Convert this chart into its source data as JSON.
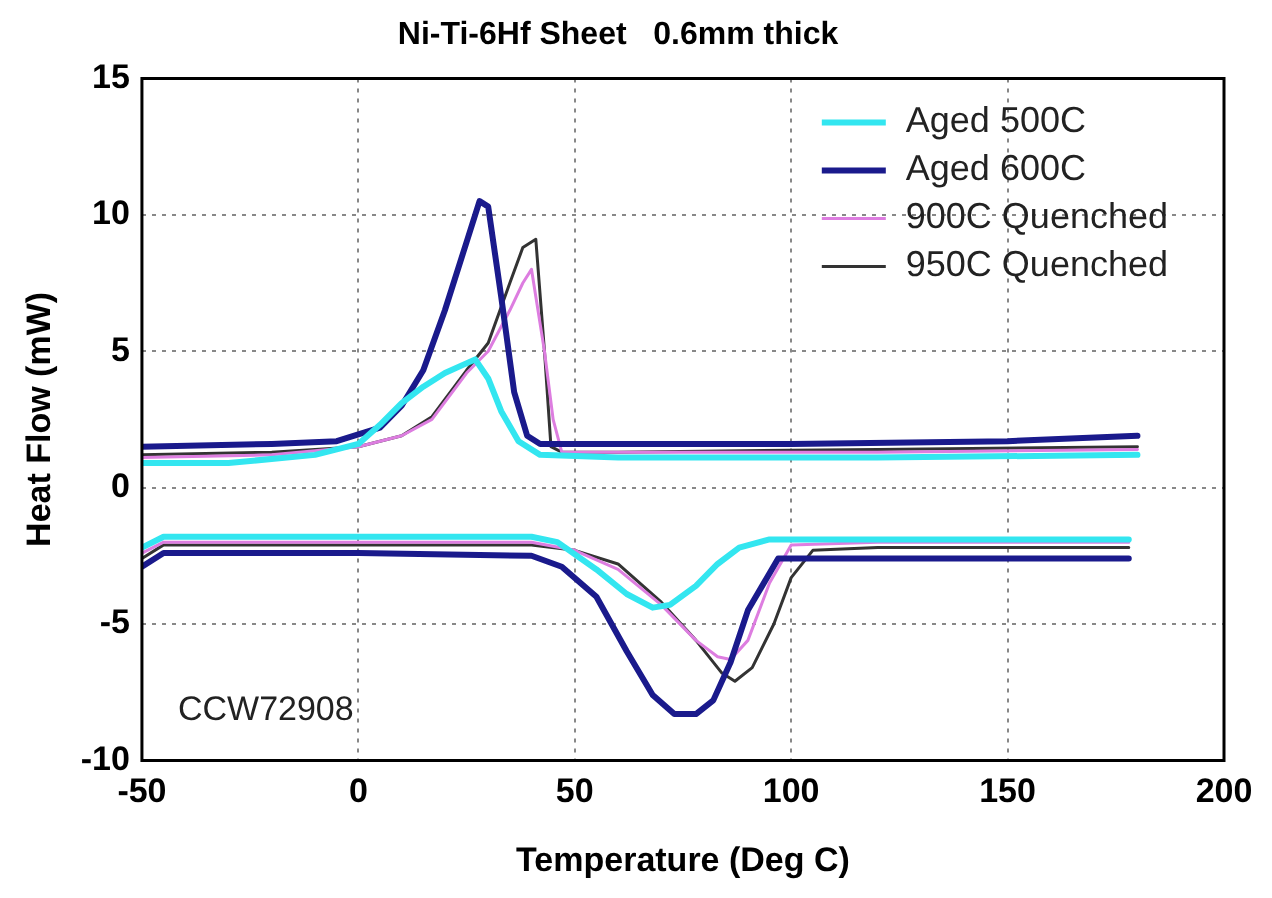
{
  "chart_data": {
    "type": "line",
    "title": "Ni-Ti-6Hf Sheet   0.6mm thick",
    "xlabel": "Temperature (Deg C)",
    "ylabel": "Heat Flow (mW)",
    "xlim": [
      -50,
      200
    ],
    "xticks": [
      -50,
      0,
      50,
      100,
      150,
      200
    ],
    "ylim": [
      -10,
      15
    ],
    "yticks": [
      -10,
      -5,
      0,
      5,
      10,
      15
    ],
    "grid": true,
    "legend": "top right",
    "marker": "none",
    "line_style": "solid",
    "annotations": [
      "CCW72908"
    ],
    "series": [
      {
        "name": "Aged 500C",
        "color": "#33e6f0",
        "x": [
          -50,
          -30,
          -10,
          0,
          5,
          10,
          15,
          20,
          27,
          30,
          33,
          37,
          42,
          60,
          120,
          180,
          null,
          -50,
          -45,
          -40,
          0,
          40,
          46,
          55,
          62,
          68,
          72,
          78,
          83,
          88,
          95,
          120,
          178
        ],
        "values": [
          0.9,
          0.9,
          1.2,
          1.6,
          2.3,
          3.1,
          3.7,
          4.2,
          4.7,
          4.0,
          2.8,
          1.7,
          1.2,
          1.1,
          1.1,
          1.2,
          null,
          -2.2,
          -1.8,
          -1.8,
          -1.8,
          -1.8,
          -2.0,
          -3.0,
          -3.9,
          -4.4,
          -4.3,
          -3.6,
          -2.8,
          -2.2,
          -1.9,
          -1.9,
          -1.9
        ]
      },
      {
        "name": "Aged 600C",
        "color": "#1a1a8c",
        "x": [
          -50,
          -20,
          -5,
          5,
          10,
          15,
          20,
          25,
          28,
          30,
          33,
          36,
          39,
          42,
          100,
          150,
          180,
          null,
          -50,
          -45,
          -40,
          0,
          40,
          47,
          55,
          62,
          68,
          73,
          78,
          82,
          86,
          90,
          97,
          120,
          178
        ],
        "values": [
          1.5,
          1.6,
          1.7,
          2.2,
          3.0,
          4.3,
          6.5,
          9.0,
          10.5,
          10.3,
          7.0,
          3.5,
          1.9,
          1.6,
          1.6,
          1.7,
          1.9,
          null,
          -2.9,
          -2.4,
          -2.4,
          -2.4,
          -2.5,
          -2.9,
          -4.0,
          -6.0,
          -7.6,
          -8.3,
          -8.3,
          -7.8,
          -6.4,
          -4.5,
          -2.6,
          -2.6,
          -2.6
        ]
      },
      {
        "name": "900C Quenched",
        "color": "#dd7de0",
        "x": [
          -50,
          -20,
          0,
          10,
          17,
          25,
          30,
          35,
          38,
          40,
          43,
          45,
          47,
          60,
          120,
          180,
          null,
          -50,
          -45,
          -40,
          0,
          40,
          50,
          60,
          70,
          78,
          83,
          86,
          90,
          95,
          100,
          120,
          178
        ],
        "values": [
          1.1,
          1.2,
          1.5,
          1.9,
          2.5,
          4.2,
          5.0,
          6.5,
          7.5,
          8.0,
          5.0,
          2.5,
          1.3,
          1.3,
          1.3,
          1.4,
          null,
          -2.4,
          -2.0,
          -2.0,
          -2.0,
          -2.0,
          -2.3,
          -3.0,
          -4.3,
          -5.6,
          -6.2,
          -6.3,
          -5.6,
          -3.5,
          -2.1,
          -2.0,
          -2.0
        ]
      },
      {
        "name": "950C Quenched",
        "color": "#333333",
        "x": [
          -50,
          -20,
          0,
          10,
          17,
          25,
          30,
          35,
          38,
          41,
          43,
          44.5,
          47,
          60,
          120,
          180,
          null,
          -50,
          -45,
          -40,
          0,
          40,
          50,
          60,
          70,
          78,
          84,
          87,
          91,
          96,
          100,
          105,
          120,
          178
        ],
        "values": [
          1.2,
          1.3,
          1.5,
          1.9,
          2.6,
          4.3,
          5.3,
          7.5,
          8.8,
          9.1,
          5.0,
          1.5,
          1.3,
          1.3,
          1.4,
          1.5,
          null,
          -2.6,
          -2.1,
          -2.1,
          -2.1,
          -2.1,
          -2.3,
          -2.8,
          -4.2,
          -5.6,
          -6.8,
          -7.1,
          -6.6,
          -5.0,
          -3.3,
          -2.3,
          -2.2,
          -2.2
        ]
      }
    ]
  }
}
